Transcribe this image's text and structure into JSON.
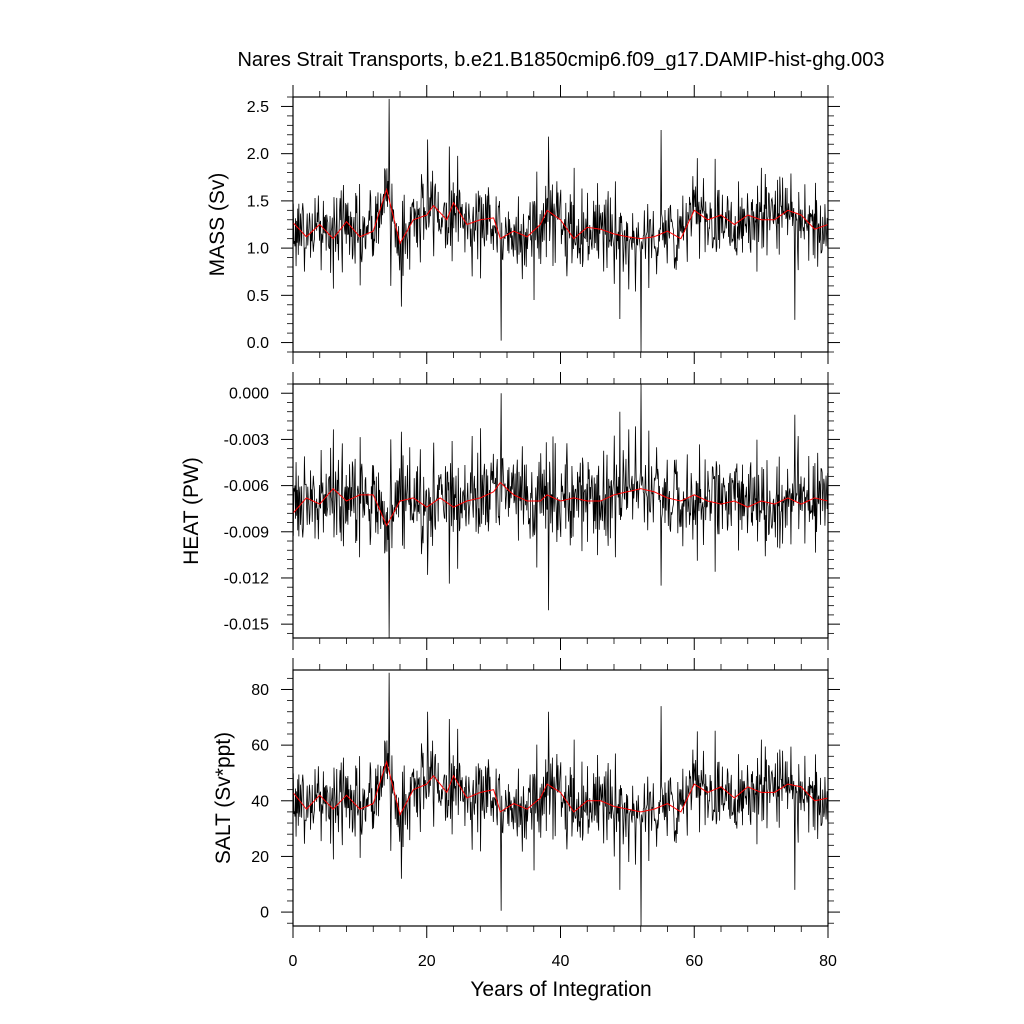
{
  "chart_data": {
    "title": "Nares Strait Transports, b.e21.B1850cmip6.f09_g17.DAMIP-hist-ghg.003",
    "xlabel": "Years of Integration",
    "xlim": [
      0,
      80
    ],
    "x_ticks": [
      0,
      20,
      40,
      60,
      80
    ],
    "grid": false,
    "panels": [
      {
        "type": "line",
        "ylabel": "MASS (Sv)",
        "ylim": [
          -0.1,
          2.6
        ],
        "y_ticks": [
          "0.0",
          "0.5",
          "1.0",
          "1.5",
          "2.0",
          "2.5"
        ],
        "mean": 1.25,
        "noise_sd": 0.22,
        "series": [
          {
            "color": "#000000",
            "spikes": [
              [
                14.3,
                2.58
              ],
              [
                14.6,
                0.6
              ],
              [
                20.1,
                2.15
              ],
              [
                16.2,
                0.38
              ],
              [
                31.1,
                0.02
              ],
              [
                38.2,
                2.18
              ],
              [
                48.8,
                0.25
              ],
              [
                52.0,
                -0.1
              ],
              [
                55.0,
                2.25
              ],
              [
                75.0,
                0.24
              ],
              [
                36.0,
                0.45
              ],
              [
                42.0,
                1.85
              ],
              [
                70.0,
                1.85
              ]
            ]
          },
          {
            "color": "#ff0000",
            "smooth": [
              [
                0,
                1.27
              ],
              [
                2,
                1.12
              ],
              [
                4,
                1.25
              ],
              [
                6,
                1.1
              ],
              [
                8,
                1.28
              ],
              [
                10,
                1.12
              ],
              [
                12,
                1.18
              ],
              [
                14,
                1.62
              ],
              [
                16,
                1.05
              ],
              [
                18,
                1.3
              ],
              [
                20,
                1.35
              ],
              [
                21,
                1.45
              ],
              [
                23,
                1.3
              ],
              [
                24,
                1.48
              ],
              [
                26,
                1.25
              ],
              [
                28,
                1.3
              ],
              [
                30,
                1.32
              ],
              [
                31,
                1.1
              ],
              [
                33,
                1.18
              ],
              [
                35,
                1.12
              ],
              [
                37,
                1.25
              ],
              [
                38,
                1.4
              ],
              [
                40,
                1.3
              ],
              [
                42,
                1.1
              ],
              [
                44,
                1.22
              ],
              [
                46,
                1.2
              ],
              [
                48,
                1.15
              ],
              [
                50,
                1.12
              ],
              [
                52,
                1.1
              ],
              [
                54,
                1.12
              ],
              [
                56,
                1.18
              ],
              [
                58,
                1.1
              ],
              [
                60,
                1.4
              ],
              [
                62,
                1.3
              ],
              [
                64,
                1.35
              ],
              [
                66,
                1.25
              ],
              [
                68,
                1.35
              ],
              [
                70,
                1.3
              ],
              [
                72,
                1.3
              ],
              [
                74,
                1.4
              ],
              [
                76,
                1.35
              ],
              [
                78,
                1.2
              ],
              [
                80,
                1.25
              ]
            ]
          }
        ]
      },
      {
        "type": "line",
        "ylabel": "HEAT (PW)",
        "ylim": [
          -0.0159,
          0.0006
        ],
        "y_ticks": [
          "0.000",
          "-0.003",
          "-0.006",
          "-0.009",
          "-0.012",
          "-0.015"
        ],
        "mean": -0.007,
        "noise_sd": 0.0016,
        "series": [
          {
            "color": "#000000",
            "spikes": [
              [
                14.3,
                -0.0159
              ],
              [
                14.6,
                -0.003
              ],
              [
                31.1,
                0.0
              ],
              [
                38.2,
                -0.0141
              ],
              [
                52.0,
                0.0006
              ],
              [
                55.0,
                -0.0125
              ],
              [
                75.0,
                -0.0014
              ],
              [
                20.1,
                -0.0118
              ],
              [
                16.2,
                -0.0025
              ],
              [
                48.8,
                -0.0012
              ]
            ]
          },
          {
            "color": "#ff0000",
            "smooth": [
              [
                0,
                -0.0078
              ],
              [
                2,
                -0.0068
              ],
              [
                4,
                -0.0072
              ],
              [
                6,
                -0.0062
              ],
              [
                8,
                -0.007
              ],
              [
                10,
                -0.0066
              ],
              [
                12,
                -0.0066
              ],
              [
                14,
                -0.0086
              ],
              [
                16,
                -0.007
              ],
              [
                18,
                -0.0068
              ],
              [
                20,
                -0.0074
              ],
              [
                22,
                -0.0068
              ],
              [
                24,
                -0.0074
              ],
              [
                26,
                -0.007
              ],
              [
                28,
                -0.0068
              ],
              [
                30,
                -0.0064
              ],
              [
                31,
                -0.0058
              ],
              [
                33,
                -0.0066
              ],
              [
                35,
                -0.007
              ],
              [
                37,
                -0.007
              ],
              [
                38,
                -0.0066
              ],
              [
                40,
                -0.007
              ],
              [
                42,
                -0.0068
              ],
              [
                44,
                -0.007
              ],
              [
                46,
                -0.007
              ],
              [
                48,
                -0.0066
              ],
              [
                50,
                -0.0064
              ],
              [
                52,
                -0.0062
              ],
              [
                54,
                -0.0064
              ],
              [
                56,
                -0.0068
              ],
              [
                58,
                -0.007
              ],
              [
                60,
                -0.0066
              ],
              [
                62,
                -0.007
              ],
              [
                64,
                -0.0072
              ],
              [
                66,
                -0.007
              ],
              [
                68,
                -0.0074
              ],
              [
                70,
                -0.007
              ],
              [
                72,
                -0.0072
              ],
              [
                74,
                -0.0068
              ],
              [
                76,
                -0.0072
              ],
              [
                78,
                -0.0068
              ],
              [
                80,
                -0.007
              ]
            ]
          }
        ]
      },
      {
        "type": "line",
        "ylabel": "SALT (Sv*ppt)",
        "ylim": [
          -5,
          87
        ],
        "y_ticks": [
          "0",
          "20",
          "40",
          "60",
          "80"
        ],
        "mean": 41,
        "noise_sd": 7.5,
        "series": [
          {
            "color": "#000000",
            "spikes": [
              [
                14.3,
                86
              ],
              [
                14.6,
                22
              ],
              [
                20.1,
                72
              ],
              [
                16.2,
                12
              ],
              [
                31.1,
                0.5
              ],
              [
                38.2,
                72
              ],
              [
                48.8,
                8
              ],
              [
                52.0,
                -5
              ],
              [
                55.0,
                74
              ],
              [
                75.0,
                8
              ],
              [
                36.0,
                15
              ],
              [
                42.0,
                62
              ],
              [
                70.0,
                62
              ]
            ]
          },
          {
            "color": "#ff0000",
            "smooth": [
              [
                0,
                43
              ],
              [
                2,
                37
              ],
              [
                4,
                42
              ],
              [
                6,
                37
              ],
              [
                8,
                42
              ],
              [
                10,
                37
              ],
              [
                12,
                39
              ],
              [
                14,
                54
              ],
              [
                16,
                35
              ],
              [
                18,
                44
              ],
              [
                20,
                46
              ],
              [
                21,
                49
              ],
              [
                23,
                43
              ],
              [
                24,
                49
              ],
              [
                26,
                41
              ],
              [
                28,
                43
              ],
              [
                30,
                44
              ],
              [
                31,
                36
              ],
              [
                33,
                39
              ],
              [
                35,
                37
              ],
              [
                37,
                41
              ],
              [
                38,
                46
              ],
              [
                40,
                43
              ],
              [
                42,
                36
              ],
              [
                44,
                40
              ],
              [
                46,
                40
              ],
              [
                48,
                38
              ],
              [
                50,
                37
              ],
              [
                52,
                36
              ],
              [
                54,
                37
              ],
              [
                56,
                39
              ],
              [
                58,
                36
              ],
              [
                60,
                46
              ],
              [
                62,
                43
              ],
              [
                64,
                45
              ],
              [
                66,
                41
              ],
              [
                68,
                45
              ],
              [
                70,
                43
              ],
              [
                72,
                43
              ],
              [
                74,
                46
              ],
              [
                76,
                45
              ],
              [
                78,
                40
              ],
              [
                80,
                41
              ]
            ]
          }
        ]
      }
    ]
  }
}
